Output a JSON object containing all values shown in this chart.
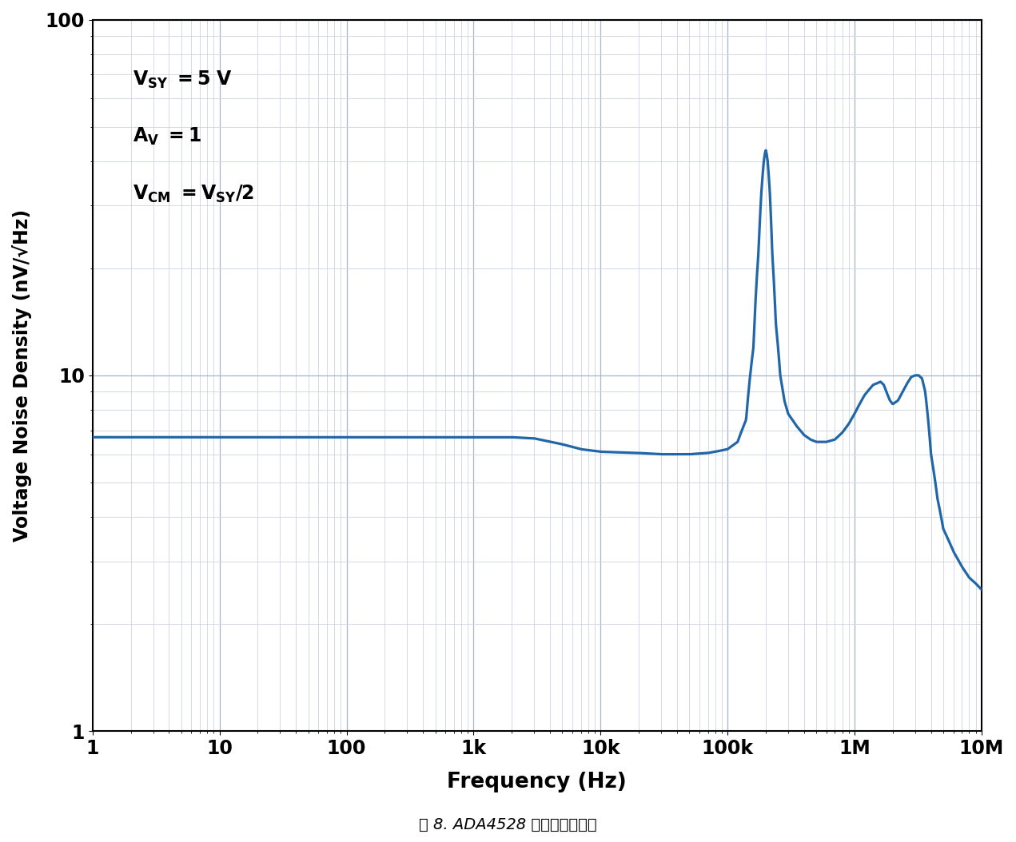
{
  "title": "",
  "xlabel": "Frequency (Hz)",
  "ylabel": "Voltage Noise Density (nV/√Hz)",
  "caption": "图 8. ADA4528 的噪声密度曲线",
  "xmin": 1,
  "xmax": 10000000.0,
  "ymin": 1,
  "ymax": 100,
  "line_color": "#2166a8",
  "line_width": 2.3,
  "bg_color": "#ffffff",
  "grid_major_color": "#aab4c8",
  "grid_minor_color": "#cdd5e2",
  "x_tick_labels": [
    "1",
    "10",
    "100",
    "1k",
    "10k",
    "100k",
    "1M",
    "10M"
  ],
  "x_tick_values": [
    1,
    10,
    100,
    1000,
    10000,
    100000,
    1000000,
    10000000
  ],
  "y_tick_labels": [
    "1",
    "10",
    "100"
  ],
  "y_tick_values": [
    1,
    10,
    100
  ]
}
